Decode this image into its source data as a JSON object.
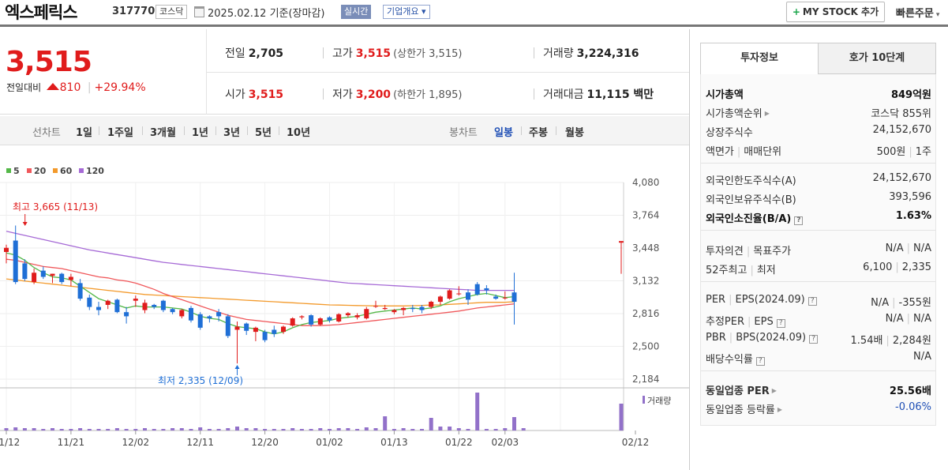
{
  "header": {
    "stock_name": "엑스페릭스",
    "stock_code": "317770",
    "market": "코스닥",
    "date_text": "2025.02.12  기준(장마감)",
    "realtime_label": "실시간",
    "company_overview_label": "기업개요 ▾",
    "my_stock_plus": "+",
    "my_stock_label": "MY STOCK 추가",
    "quick_order_label": "빠른주문"
  },
  "summary": {
    "current_price": "3,515",
    "change_label": "전일대비",
    "change_amount": "810",
    "change_rate": "+29.94%",
    "quotes": {
      "prev_close_label": "전일",
      "prev_close": "2,705",
      "high_label": "고가",
      "high": "3,515",
      "upper_limit": "(상한가 3,515)",
      "volume_label": "거래량",
      "volume": "3,224,316",
      "open_label": "시가",
      "open": "3,515",
      "low_label": "저가",
      "low": "3,200",
      "lower_limit": "(하한가 1,895)",
      "amount_label": "거래대금",
      "amount": "11,115 백만"
    }
  },
  "period_tabs": {
    "line_label": "선차트",
    "line_periods": [
      "1일",
      "1주일",
      "3개월",
      "1년",
      "3년",
      "5년",
      "10년"
    ],
    "candle_label": "봉차트",
    "candle_periods": [
      "일봉",
      "주봉",
      "월봉"
    ],
    "active": "일봉"
  },
  "right_panel": {
    "tabs": [
      "투자정보",
      "호가 10단계"
    ],
    "rows": {
      "market_cap_label": "시가총액",
      "market_cap": "849억원",
      "market_cap_rank_label": "시가총액순위",
      "market_cap_rank": "코스닥 855위",
      "shares_label": "상장주식수",
      "shares": "24,152,670",
      "face_value_label": "액면가",
      "trade_unit_label": "매매단위",
      "face_value": "500원",
      "trade_unit": "1주",
      "foreign_limit_label": "외국인한도주식수(A)",
      "foreign_limit": "24,152,670",
      "foreign_hold_label": "외국인보유주식수(B)",
      "foreign_hold": "393,596",
      "foreign_ratio_label": "외국인소진율(B/A)",
      "foreign_ratio": "1.63%",
      "opinion_label": "투자의견",
      "target_label": "목표주가",
      "opinion": "N/A",
      "target": "N/A",
      "high52_label": "52주최고",
      "low52_label": "최저",
      "high52": "6,100",
      "low52": "2,335",
      "per_label": "PER",
      "eps_label": "EPS(2024.09)",
      "per": "N/A",
      "eps": "-355원",
      "est_per_label": "추정PER",
      "est_eps_label": "EPS",
      "est_per": "N/A",
      "est_eps": "N/A",
      "pbr_label": "PBR",
      "bps_label": "BPS(2024.09)",
      "pbr": "1.54배",
      "bps": "2,284원",
      "div_label": "배당수익률",
      "div": "N/A",
      "sector_per_label": "동일업종 PER",
      "sector_per": "25.56배",
      "sector_change_label": "동일업종 등락률",
      "sector_change": "-0.06%"
    }
  },
  "colors": {
    "up": "#e01c1c",
    "down": "#1f6fd6",
    "ma5": "#54b848",
    "ma20": "#f0585b",
    "ma60": "#f39a2c",
    "ma120": "#a66ad6",
    "volume": "#9271c9"
  },
  "chart_data": {
    "type": "candlestick",
    "legend": [
      "5",
      "20",
      "60",
      "120"
    ],
    "y_ticks": [
      4080,
      3764,
      3448,
      3132,
      2816,
      2500,
      2184
    ],
    "ylim": [
      2184,
      4080
    ],
    "x_ticks": [
      "11/12",
      "11/21",
      "12/02",
      "12/11",
      "12/20",
      "01/02",
      "01/13",
      "01/22",
      "02/03",
      "02/12"
    ],
    "x_tick_index": [
      0,
      7,
      14,
      21,
      28,
      35,
      42,
      49,
      54,
      60
    ],
    "volume_label": "거래량",
    "annotations": {
      "high_label": "최고 3,665 (11/13)",
      "low_label": "최저 2,335 (12/09)"
    },
    "candles": [
      {
        "o": 3410,
        "h": 3480,
        "l": 3300,
        "c": 3450
      },
      {
        "o": 3520,
        "h": 3665,
        "l": 3100,
        "c": 3120
      },
      {
        "o": 3300,
        "h": 3340,
        "l": 3130,
        "c": 3150
      },
      {
        "o": 3120,
        "h": 3250,
        "l": 3100,
        "c": 3210
      },
      {
        "o": 3230,
        "h": 3270,
        "l": 3150,
        "c": 3170
      },
      {
        "o": 3180,
        "h": 3200,
        "l": 3110,
        "c": 3200
      },
      {
        "o": 3200,
        "h": 3210,
        "l": 3100,
        "c": 3120
      },
      {
        "o": 3140,
        "h": 3200,
        "l": 3080,
        "c": 3170
      },
      {
        "o": 3110,
        "h": 3150,
        "l": 2940,
        "c": 2960
      },
      {
        "o": 2970,
        "h": 3000,
        "l": 2850,
        "c": 2880
      },
      {
        "o": 2880,
        "h": 2930,
        "l": 2800,
        "c": 2850
      },
      {
        "o": 2900,
        "h": 2950,
        "l": 2860,
        "c": 2940
      },
      {
        "o": 2950,
        "h": 2960,
        "l": 2820,
        "c": 2830
      },
      {
        "o": 2830,
        "h": 2880,
        "l": 2720,
        "c": 2790
      },
      {
        "o": 2940,
        "h": 2990,
        "l": 2880,
        "c": 2960
      },
      {
        "o": 2850,
        "h": 2950,
        "l": 2820,
        "c": 2920
      },
      {
        "o": 2900,
        "h": 2910,
        "l": 2860,
        "c": 2880
      },
      {
        "o": 2940,
        "h": 2950,
        "l": 2830,
        "c": 2850
      },
      {
        "o": 2860,
        "h": 2870,
        "l": 2810,
        "c": 2830
      },
      {
        "o": 2790,
        "h": 2860,
        "l": 2770,
        "c": 2850
      },
      {
        "o": 2870,
        "h": 2890,
        "l": 2730,
        "c": 2750
      },
      {
        "o": 2810,
        "h": 2830,
        "l": 2660,
        "c": 2680
      },
      {
        "o": 2790,
        "h": 2800,
        "l": 2730,
        "c": 2770
      },
      {
        "o": 2830,
        "h": 2860,
        "l": 2740,
        "c": 2790
      },
      {
        "o": 2790,
        "h": 2810,
        "l": 2580,
        "c": 2600
      },
      {
        "o": 2660,
        "h": 2740,
        "l": 2335,
        "c": 2690
      },
      {
        "o": 2720,
        "h": 2730,
        "l": 2610,
        "c": 2650
      },
      {
        "o": 2640,
        "h": 2690,
        "l": 2550,
        "c": 2680
      },
      {
        "o": 2640,
        "h": 2660,
        "l": 2540,
        "c": 2560
      },
      {
        "o": 2660,
        "h": 2700,
        "l": 2590,
        "c": 2620
      },
      {
        "o": 2640,
        "h": 2700,
        "l": 2620,
        "c": 2690
      },
      {
        "o": 2700,
        "h": 2780,
        "l": 2690,
        "c": 2770
      },
      {
        "o": 2780,
        "h": 2800,
        "l": 2760,
        "c": 2790
      },
      {
        "o": 2800,
        "h": 2810,
        "l": 2690,
        "c": 2710
      },
      {
        "o": 2710,
        "h": 2780,
        "l": 2700,
        "c": 2770
      },
      {
        "o": 2780,
        "h": 2790,
        "l": 2730,
        "c": 2750
      },
      {
        "o": 2740,
        "h": 2820,
        "l": 2730,
        "c": 2810
      },
      {
        "o": 2800,
        "h": 2830,
        "l": 2780,
        "c": 2820
      },
      {
        "o": 2780,
        "h": 2820,
        "l": 2760,
        "c": 2800
      },
      {
        "o": 2770,
        "h": 2880,
        "l": 2760,
        "c": 2860
      },
      {
        "o": 2890,
        "h": 2940,
        "l": 2870,
        "c": 2890
      },
      {
        "o": 2860,
        "h": 2900,
        "l": 2850,
        "c": 2870
      },
      {
        "o": 2830,
        "h": 2860,
        "l": 2810,
        "c": 2850
      },
      {
        "o": 2850,
        "h": 2880,
        "l": 2800,
        "c": 2870
      },
      {
        "o": 2870,
        "h": 2900,
        "l": 2830,
        "c": 2860
      },
      {
        "o": 2880,
        "h": 2900,
        "l": 2820,
        "c": 2850
      },
      {
        "o": 2880,
        "h": 2940,
        "l": 2860,
        "c": 2930
      },
      {
        "o": 2930,
        "h": 2990,
        "l": 2900,
        "c": 2980
      },
      {
        "o": 2960,
        "h": 3050,
        "l": 2950,
        "c": 3040
      },
      {
        "o": 3010,
        "h": 3080,
        "l": 2990,
        "c": 3010
      },
      {
        "o": 3020,
        "h": 3050,
        "l": 2900,
        "c": 2950
      },
      {
        "o": 3100,
        "h": 3120,
        "l": 2990,
        "c": 3000
      },
      {
        "o": 3060,
        "h": 3090,
        "l": 3000,
        "c": 3040
      },
      {
        "o": 2980,
        "h": 3000,
        "l": 2950,
        "c": 2960
      },
      {
        "o": 2970,
        "h": 3030,
        "l": 2950,
        "c": 2970
      },
      {
        "o": 3020,
        "h": 3210,
        "l": 2710,
        "c": 2930
      }
    ],
    "ma5": [
      3400,
      3380,
      3330,
      3260,
      3210,
      3170,
      3160,
      3140,
      3080,
      3020,
      2960,
      2930,
      2900,
      2870,
      2890,
      2880,
      2880,
      2880,
      2870,
      2860,
      2830,
      2790,
      2770,
      2760,
      2720,
      2690,
      2680,
      2670,
      2640,
      2620,
      2640,
      2680,
      2710,
      2730,
      2740,
      2750,
      2770,
      2780,
      2790,
      2810,
      2830,
      2840,
      2850,
      2860,
      2870,
      2860,
      2870,
      2890,
      2930,
      2960,
      2980,
      3000,
      3010,
      2990,
      2970,
      2980
    ],
    "ma20": [
      3340,
      3330,
      3310,
      3290,
      3270,
      3260,
      3250,
      3230,
      3210,
      3190,
      3170,
      3160,
      3140,
      3130,
      3110,
      3080,
      3050,
      3010,
      2980,
      2950,
      2920,
      2890,
      2860,
      2830,
      2800,
      2780,
      2760,
      2750,
      2740,
      2730,
      2720,
      2710,
      2700,
      2700,
      2700,
      2705,
      2710,
      2720,
      2730,
      2740,
      2750,
      2760,
      2770,
      2780,
      2790,
      2800,
      2810,
      2820,
      2830,
      2840,
      2855,
      2870,
      2880,
      2890,
      2900,
      2910
    ],
    "ma60": [
      3150,
      3140,
      3130,
      3120,
      3110,
      3100,
      3090,
      3080,
      3070,
      3060,
      3050,
      3040,
      3030,
      3020,
      3010,
      3000,
      2995,
      2990,
      2985,
      2980,
      2975,
      2970,
      2965,
      2960,
      2955,
      2950,
      2945,
      2940,
      2935,
      2930,
      2925,
      2920,
      2915,
      2910,
      2905,
      2900,
      2898,
      2896,
      2894,
      2892,
      2890,
      2890,
      2890,
      2890,
      2892,
      2895,
      2898,
      2900,
      2905,
      2910,
      2915,
      2920,
      2925,
      2925,
      2925,
      2930
    ],
    "ma120": [
      3610,
      3590,
      3570,
      3550,
      3530,
      3510,
      3490,
      3470,
      3450,
      3430,
      3415,
      3400,
      3385,
      3370,
      3355,
      3340,
      3325,
      3310,
      3300,
      3290,
      3280,
      3270,
      3260,
      3250,
      3240,
      3230,
      3220,
      3210,
      3200,
      3190,
      3180,
      3170,
      3160,
      3150,
      3140,
      3130,
      3120,
      3110,
      3105,
      3100,
      3095,
      3090,
      3085,
      3080,
      3075,
      3070,
      3065,
      3060,
      3055,
      3050,
      3045,
      3040,
      3040,
      3040,
      3040,
      3040
    ]
  }
}
